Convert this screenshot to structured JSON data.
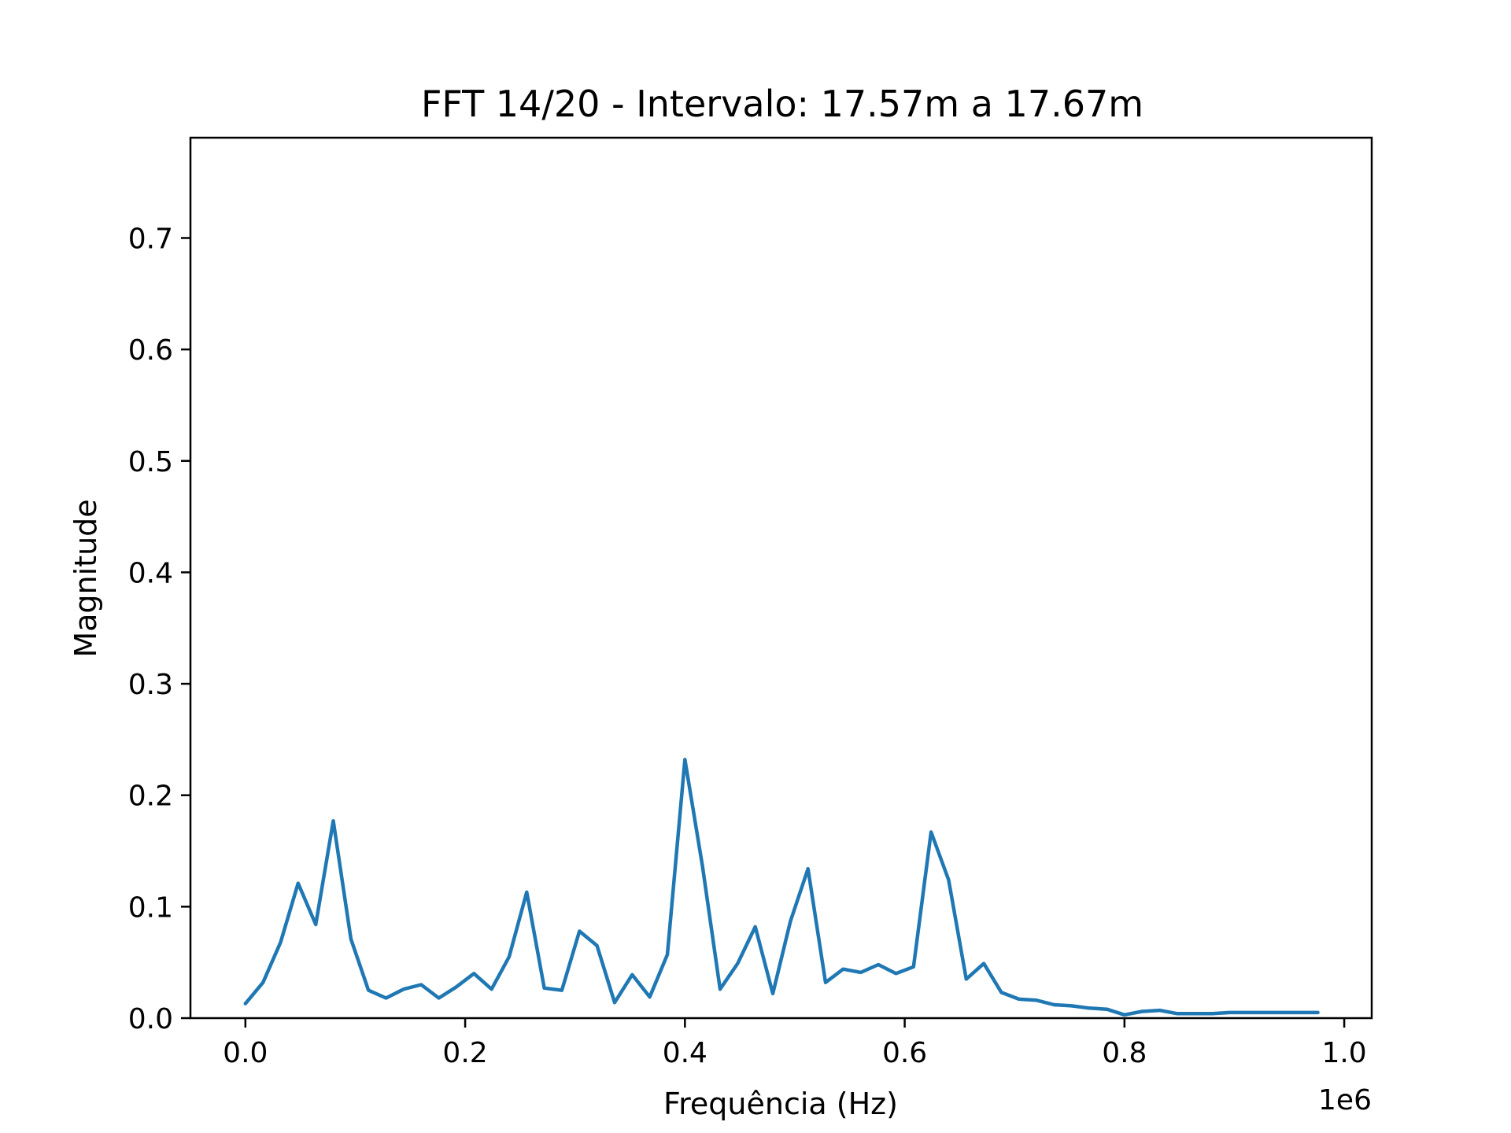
{
  "chart_data": {
    "type": "line",
    "title": "FFT 14/20 - Intervalo: 17.57m a 17.67m",
    "xlabel": "Frequência (Hz)",
    "ylabel": "Magnitude",
    "x_offset_label": "1e6",
    "xlim": [
      -0.05,
      1.025
    ],
    "ylim": [
      0,
      0.79
    ],
    "x_scale_factor": 1000000,
    "xticks": [
      0.0,
      0.2,
      0.4,
      0.6,
      0.8,
      1.0
    ],
    "xtick_labels": [
      "0.0",
      "0.2",
      "0.4",
      "0.6",
      "0.8",
      "1.0"
    ],
    "yticks": [
      0.0,
      0.1,
      0.2,
      0.3,
      0.4,
      0.5,
      0.6,
      0.7
    ],
    "ytick_labels": [
      "0.0",
      "0.1",
      "0.2",
      "0.3",
      "0.4",
      "0.5",
      "0.6",
      "0.7"
    ],
    "grid": false,
    "line_color": "#1f77b4",
    "series": [
      {
        "x": [
          0.0,
          0.016,
          0.032,
          0.048,
          0.064,
          0.08,
          0.096,
          0.112,
          0.128,
          0.144,
          0.16,
          0.176,
          0.192,
          0.208,
          0.224,
          0.24,
          0.256,
          0.272,
          0.288,
          0.304,
          0.32,
          0.336,
          0.352,
          0.368,
          0.384,
          0.4,
          0.416,
          0.432,
          0.448,
          0.464,
          0.48,
          0.496,
          0.512,
          0.528,
          0.544,
          0.56,
          0.576,
          0.592,
          0.608,
          0.624,
          0.64,
          0.656,
          0.672,
          0.688,
          0.704,
          0.72,
          0.736,
          0.752,
          0.768,
          0.784,
          0.8,
          0.816,
          0.832,
          0.848,
          0.864,
          0.88,
          0.896,
          0.912,
          0.928,
          0.944,
          0.96,
          0.976
        ],
        "values": [
          0.013,
          0.032,
          0.068,
          0.121,
          0.084,
          0.177,
          0.071,
          0.025,
          0.018,
          0.026,
          0.03,
          0.018,
          0.028,
          0.04,
          0.026,
          0.055,
          0.113,
          0.027,
          0.025,
          0.078,
          0.065,
          0.014,
          0.039,
          0.019,
          0.057,
          0.232,
          0.136,
          0.026,
          0.049,
          0.082,
          0.022,
          0.087,
          0.134,
          0.032,
          0.044,
          0.041,
          0.048,
          0.04,
          0.046,
          0.167,
          0.124,
          0.035,
          0.049,
          0.023,
          0.017,
          0.016,
          0.012,
          0.011,
          0.009,
          0.008,
          0.003,
          0.006,
          0.007,
          0.004,
          0.004,
          0.004,
          0.005,
          0.005,
          0.005,
          0.005,
          0.005,
          0.005
        ]
      }
    ]
  }
}
